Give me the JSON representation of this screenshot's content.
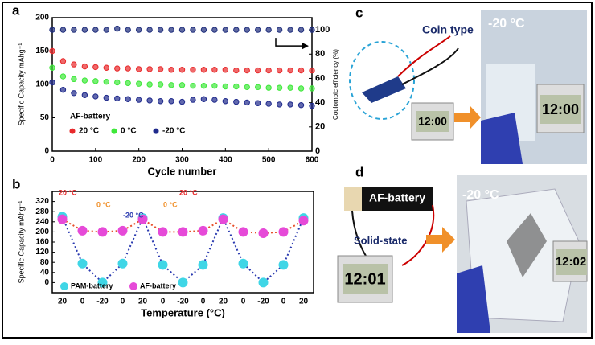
{
  "chart_data": [
    {
      "type": "scatter",
      "panel": "a",
      "x_label": "Cycle number",
      "y_label": "Specific Capacity mAhg⁻¹",
      "y2_label": "Coulombic efficiency (%)",
      "xlim": [
        0,
        600
      ],
      "xticks": [
        0,
        100,
        200,
        300,
        400,
        500,
        600
      ],
      "ylim": [
        0,
        200
      ],
      "yticks": [
        0,
        50,
        100,
        150,
        200
      ],
      "y2lim": [
        0,
        110
      ],
      "y2ticks": [
        0,
        20,
        40,
        60,
        80,
        100
      ],
      "legend_title": "AF-battery",
      "x": [
        0,
        25,
        50,
        75,
        100,
        125,
        150,
        175,
        200,
        225,
        250,
        275,
        300,
        325,
        350,
        375,
        400,
        425,
        450,
        475,
        500,
        525,
        550,
        575,
        600
      ],
      "series": [
        {
          "name": "20 °C",
          "color": "#e8292b",
          "values": [
            150,
            135,
            130,
            127,
            126,
            125,
            124,
            124,
            123,
            123,
            123,
            122,
            122,
            122,
            122,
            122,
            122,
            121,
            121,
            121,
            121,
            121,
            121,
            121,
            121
          ]
        },
        {
          "name": "0 °C",
          "color": "#3ee83a",
          "values": [
            125,
            112,
            108,
            106,
            105,
            104,
            103,
            102,
            101,
            100,
            100,
            99,
            99,
            98,
            98,
            98,
            97,
            97,
            96,
            96,
            95,
            95,
            95,
            94,
            94
          ]
        },
        {
          "name": "-20 °C",
          "color": "#1f2a8c",
          "values": [
            103,
            92,
            87,
            84,
            82,
            80,
            79,
            78,
            77,
            76,
            75,
            75,
            74,
            77,
            78,
            77,
            75,
            74,
            73,
            72,
            71,
            70,
            70,
            69,
            68
          ]
        },
        {
          "color": "#1c2b7a",
          "axis": "y2",
          "values": [
            100,
            100,
            100,
            100,
            100,
            100,
            101,
            100,
            100,
            100,
            100,
            100,
            100,
            100,
            100,
            100,
            100,
            100,
            100,
            100,
            100,
            100,
            100,
            100,
            100
          ]
        }
      ]
    },
    {
      "type": "line",
      "panel": "b",
      "x_label": "Temperature (°C)",
      "y_label": "Specific Capacity mAhg⁻¹",
      "categories": [
        "20",
        "0",
        "-20",
        "0",
        "20",
        "0",
        "-20",
        "0",
        "20",
        "0",
        "-20",
        "0",
        "20"
      ],
      "ylim": [
        -40,
        360
      ],
      "yticks": [
        0,
        40,
        80,
        120,
        160,
        200,
        240,
        280,
        320
      ],
      "annotations": [
        {
          "text": "20 °C",
          "color": "#e8292b"
        },
        {
          "text": "0 °C",
          "color": "#f0902a"
        },
        {
          "text": "-20 °C",
          "color": "#2a3ab0"
        },
        {
          "text": "0 °C",
          "color": "#f0902a"
        },
        {
          "text": "20 °C",
          "color": "#e8292b"
        }
      ],
      "series": [
        {
          "name": "PAM-battery",
          "color": "#3fd6e6",
          "line_color": "#2a3ab0",
          "values": [
            260,
            75,
            0,
            75,
            255,
            70,
            0,
            70,
            255,
            75,
            0,
            70,
            255
          ]
        },
        {
          "name": "AF-battery",
          "color": "#e64ad8",
          "line_color": "#e8502b",
          "values": [
            250,
            205,
            200,
            205,
            250,
            200,
            200,
            205,
            250,
            200,
            195,
            200,
            245
          ]
        }
      ]
    }
  ],
  "photos": {
    "c": {
      "label": "c",
      "coin": "Coin type",
      "temp": "-20 °C",
      "clock1": "12:00",
      "clock2": "12:00"
    },
    "d": {
      "label": "d",
      "battery": "AF-battery",
      "solid": "Solid-state",
      "temp": "-20 °C",
      "clock1": "12:01",
      "clock2": "12:02"
    }
  }
}
